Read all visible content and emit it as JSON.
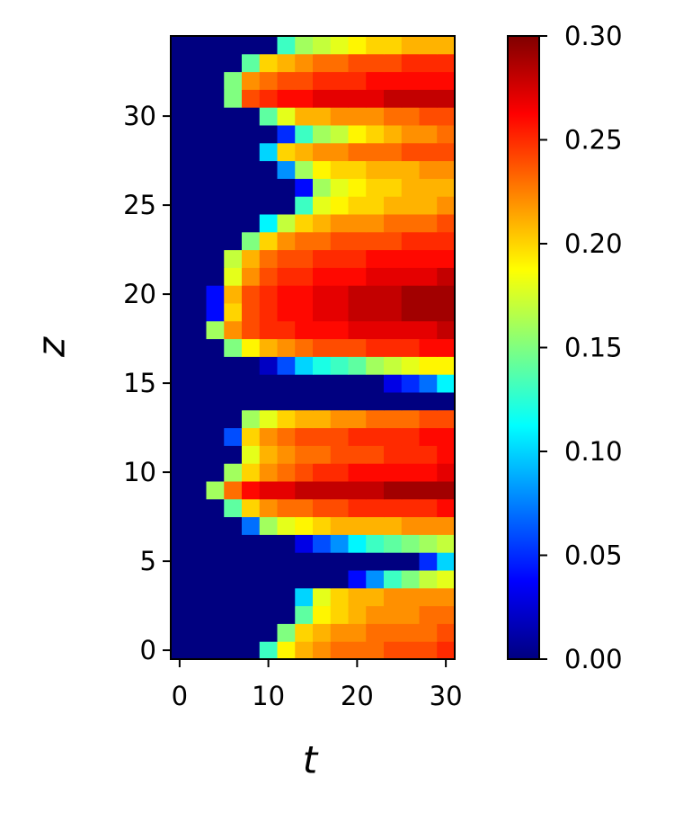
{
  "chart_data": {
    "type": "heatmap",
    "colormap": "jet",
    "xlabel": "t",
    "ylabel": "z",
    "x": [
      0,
      2,
      4,
      6,
      8,
      10,
      12,
      14,
      16,
      18,
      20,
      22,
      24,
      26,
      28,
      30
    ],
    "y": [
      0,
      1,
      2,
      3,
      4,
      5,
      6,
      7,
      8,
      9,
      10,
      11,
      12,
      13,
      14,
      15,
      16,
      17,
      18,
      19,
      20,
      21,
      22,
      23,
      24,
      25,
      26,
      27,
      28,
      29,
      30,
      31,
      32,
      33,
      34
    ],
    "z": [
      [
        0,
        0,
        0,
        0,
        0,
        0.13,
        0.19,
        0.21,
        0.22,
        0.23,
        0.23,
        0.23,
        0.24,
        0.24,
        0.24,
        0.25
      ],
      [
        0,
        0,
        0,
        0,
        0,
        0,
        0.15,
        0.2,
        0.21,
        0.22,
        0.22,
        0.23,
        0.23,
        0.23,
        0.23,
        0.24
      ],
      [
        0,
        0,
        0,
        0,
        0,
        0,
        0,
        0.14,
        0.19,
        0.2,
        0.21,
        0.22,
        0.22,
        0.22,
        0.23,
        0.23
      ],
      [
        0,
        0,
        0,
        0,
        0,
        0,
        0,
        0.1,
        0.18,
        0.2,
        0.21,
        0.21,
        0.22,
        0.22,
        0.22,
        0.22
      ],
      [
        0,
        0,
        0,
        0,
        0,
        0,
        0,
        0,
        0,
        0,
        0.04,
        0.08,
        0.13,
        0.15,
        0.17,
        0.18
      ],
      [
        0,
        0,
        0,
        0,
        0,
        0,
        0,
        0,
        0,
        0,
        0,
        0,
        0,
        0,
        0.05,
        0.1
      ],
      [
        0,
        0,
        0,
        0,
        0,
        0,
        0,
        0.03,
        0.06,
        0.08,
        0.11,
        0.13,
        0.14,
        0.15,
        0.16,
        0.17
      ],
      [
        0,
        0,
        0,
        0,
        0.07,
        0.16,
        0.18,
        0.19,
        0.2,
        0.21,
        0.21,
        0.21,
        0.21,
        0.22,
        0.22,
        0.22
      ],
      [
        0,
        0,
        0,
        0.14,
        0.2,
        0.22,
        0.23,
        0.23,
        0.24,
        0.24,
        0.25,
        0.25,
        0.25,
        0.25,
        0.25,
        0.26
      ],
      [
        0,
        0,
        0.16,
        0.23,
        0.26,
        0.27,
        0.27,
        0.28,
        0.28,
        0.28,
        0.28,
        0.28,
        0.29,
        0.29,
        0.29,
        0.29
      ],
      [
        0,
        0,
        0,
        0.16,
        0.2,
        0.22,
        0.23,
        0.24,
        0.25,
        0.25,
        0.26,
        0.26,
        0.26,
        0.26,
        0.26,
        0.27
      ],
      [
        0,
        0,
        0,
        0,
        0.18,
        0.21,
        0.22,
        0.23,
        0.23,
        0.24,
        0.24,
        0.24,
        0.25,
        0.25,
        0.25,
        0.26
      ],
      [
        0,
        0,
        0,
        0.06,
        0.2,
        0.22,
        0.23,
        0.24,
        0.24,
        0.24,
        0.25,
        0.25,
        0.25,
        0.25,
        0.26,
        0.26
      ],
      [
        0,
        0,
        0,
        0,
        0.16,
        0.18,
        0.2,
        0.21,
        0.21,
        0.22,
        0.22,
        0.23,
        0.23,
        0.23,
        0.24,
        0.24
      ],
      [
        0,
        0,
        0,
        0,
        0,
        0,
        0,
        0,
        0,
        0,
        0,
        0,
        0,
        0,
        0,
        0
      ],
      [
        0,
        0,
        0,
        0,
        0,
        0,
        0,
        0,
        0,
        0,
        0,
        0,
        0.03,
        0.05,
        0.07,
        0.11
      ],
      [
        0,
        0,
        0,
        0,
        0,
        0.02,
        0.06,
        0.1,
        0.12,
        0.13,
        0.14,
        0.16,
        0.17,
        0.18,
        0.19,
        0.19
      ],
      [
        0,
        0,
        0,
        0.15,
        0.19,
        0.21,
        0.22,
        0.23,
        0.24,
        0.24,
        0.24,
        0.25,
        0.25,
        0.25,
        0.26,
        0.26
      ],
      [
        0,
        0,
        0.16,
        0.22,
        0.24,
        0.25,
        0.25,
        0.26,
        0.26,
        0.26,
        0.27,
        0.27,
        0.27,
        0.27,
        0.27,
        0.28
      ],
      [
        0,
        0,
        0.04,
        0.2,
        0.24,
        0.25,
        0.26,
        0.26,
        0.27,
        0.27,
        0.28,
        0.28,
        0.28,
        0.29,
        0.29,
        0.29
      ],
      [
        0,
        0,
        0.04,
        0.21,
        0.24,
        0.25,
        0.26,
        0.26,
        0.27,
        0.27,
        0.28,
        0.28,
        0.28,
        0.29,
        0.29,
        0.29
      ],
      [
        0,
        0,
        0,
        0.18,
        0.22,
        0.24,
        0.25,
        0.25,
        0.26,
        0.26,
        0.26,
        0.27,
        0.27,
        0.27,
        0.27,
        0.28
      ],
      [
        0,
        0,
        0,
        0.17,
        0.21,
        0.23,
        0.24,
        0.24,
        0.25,
        0.25,
        0.25,
        0.26,
        0.26,
        0.26,
        0.26,
        0.26
      ],
      [
        0,
        0,
        0,
        0,
        0.15,
        0.2,
        0.22,
        0.23,
        0.23,
        0.24,
        0.24,
        0.24,
        0.24,
        0.25,
        0.25,
        0.25
      ],
      [
        0,
        0,
        0,
        0,
        0,
        0.11,
        0.17,
        0.2,
        0.21,
        0.22,
        0.22,
        0.22,
        0.23,
        0.23,
        0.23,
        0.24
      ],
      [
        0,
        0,
        0,
        0,
        0,
        0,
        0,
        0.13,
        0.18,
        0.19,
        0.2,
        0.2,
        0.21,
        0.21,
        0.21,
        0.22
      ],
      [
        0,
        0,
        0,
        0,
        0,
        0,
        0,
        0.04,
        0.16,
        0.18,
        0.19,
        0.2,
        0.2,
        0.21,
        0.21,
        0.21
      ],
      [
        0,
        0,
        0,
        0,
        0,
        0,
        0.08,
        0.16,
        0.19,
        0.2,
        0.2,
        0.21,
        0.21,
        0.21,
        0.22,
        0.22
      ],
      [
        0,
        0,
        0,
        0,
        0,
        0.1,
        0.2,
        0.21,
        0.22,
        0.22,
        0.23,
        0.23,
        0.23,
        0.24,
        0.24,
        0.24
      ],
      [
        0,
        0,
        0,
        0,
        0,
        0,
        0.05,
        0.13,
        0.16,
        0.17,
        0.19,
        0.2,
        0.21,
        0.22,
        0.22,
        0.23
      ],
      [
        0,
        0,
        0,
        0,
        0,
        0.14,
        0.18,
        0.21,
        0.21,
        0.22,
        0.22,
        0.22,
        0.23,
        0.23,
        0.24,
        0.24
      ],
      [
        0,
        0,
        0,
        0.15,
        0.24,
        0.25,
        0.26,
        0.26,
        0.27,
        0.27,
        0.27,
        0.27,
        0.28,
        0.28,
        0.28,
        0.28
      ],
      [
        0,
        0,
        0,
        0.15,
        0.22,
        0.23,
        0.24,
        0.24,
        0.25,
        0.25,
        0.25,
        0.26,
        0.26,
        0.26,
        0.26,
        0.26
      ],
      [
        0,
        0,
        0,
        0,
        0.14,
        0.2,
        0.21,
        0.22,
        0.23,
        0.23,
        0.24,
        0.24,
        0.24,
        0.25,
        0.25,
        0.25
      ],
      [
        0,
        0,
        0,
        0,
        0,
        0,
        0.13,
        0.16,
        0.17,
        0.18,
        0.19,
        0.2,
        0.2,
        0.21,
        0.21,
        0.21
      ]
    ],
    "xlim": [
      -1,
      31
    ],
    "ylim": [
      -0.5,
      34.5
    ],
    "xticks": [
      0,
      10,
      20,
      30
    ],
    "yticks": [
      0,
      5,
      10,
      15,
      20,
      25,
      30
    ],
    "clim": [
      0,
      0.3
    ],
    "cticks": [
      {
        "value": 0,
        "label": "0.00"
      },
      0.05,
      {
        "value": 0.1,
        "label": "0.10"
      },
      0.15,
      {
        "value": 0.2,
        "label": "0.20"
      },
      0.25,
      {
        "value": 0.3,
        "label": "0.30"
      }
    ]
  }
}
